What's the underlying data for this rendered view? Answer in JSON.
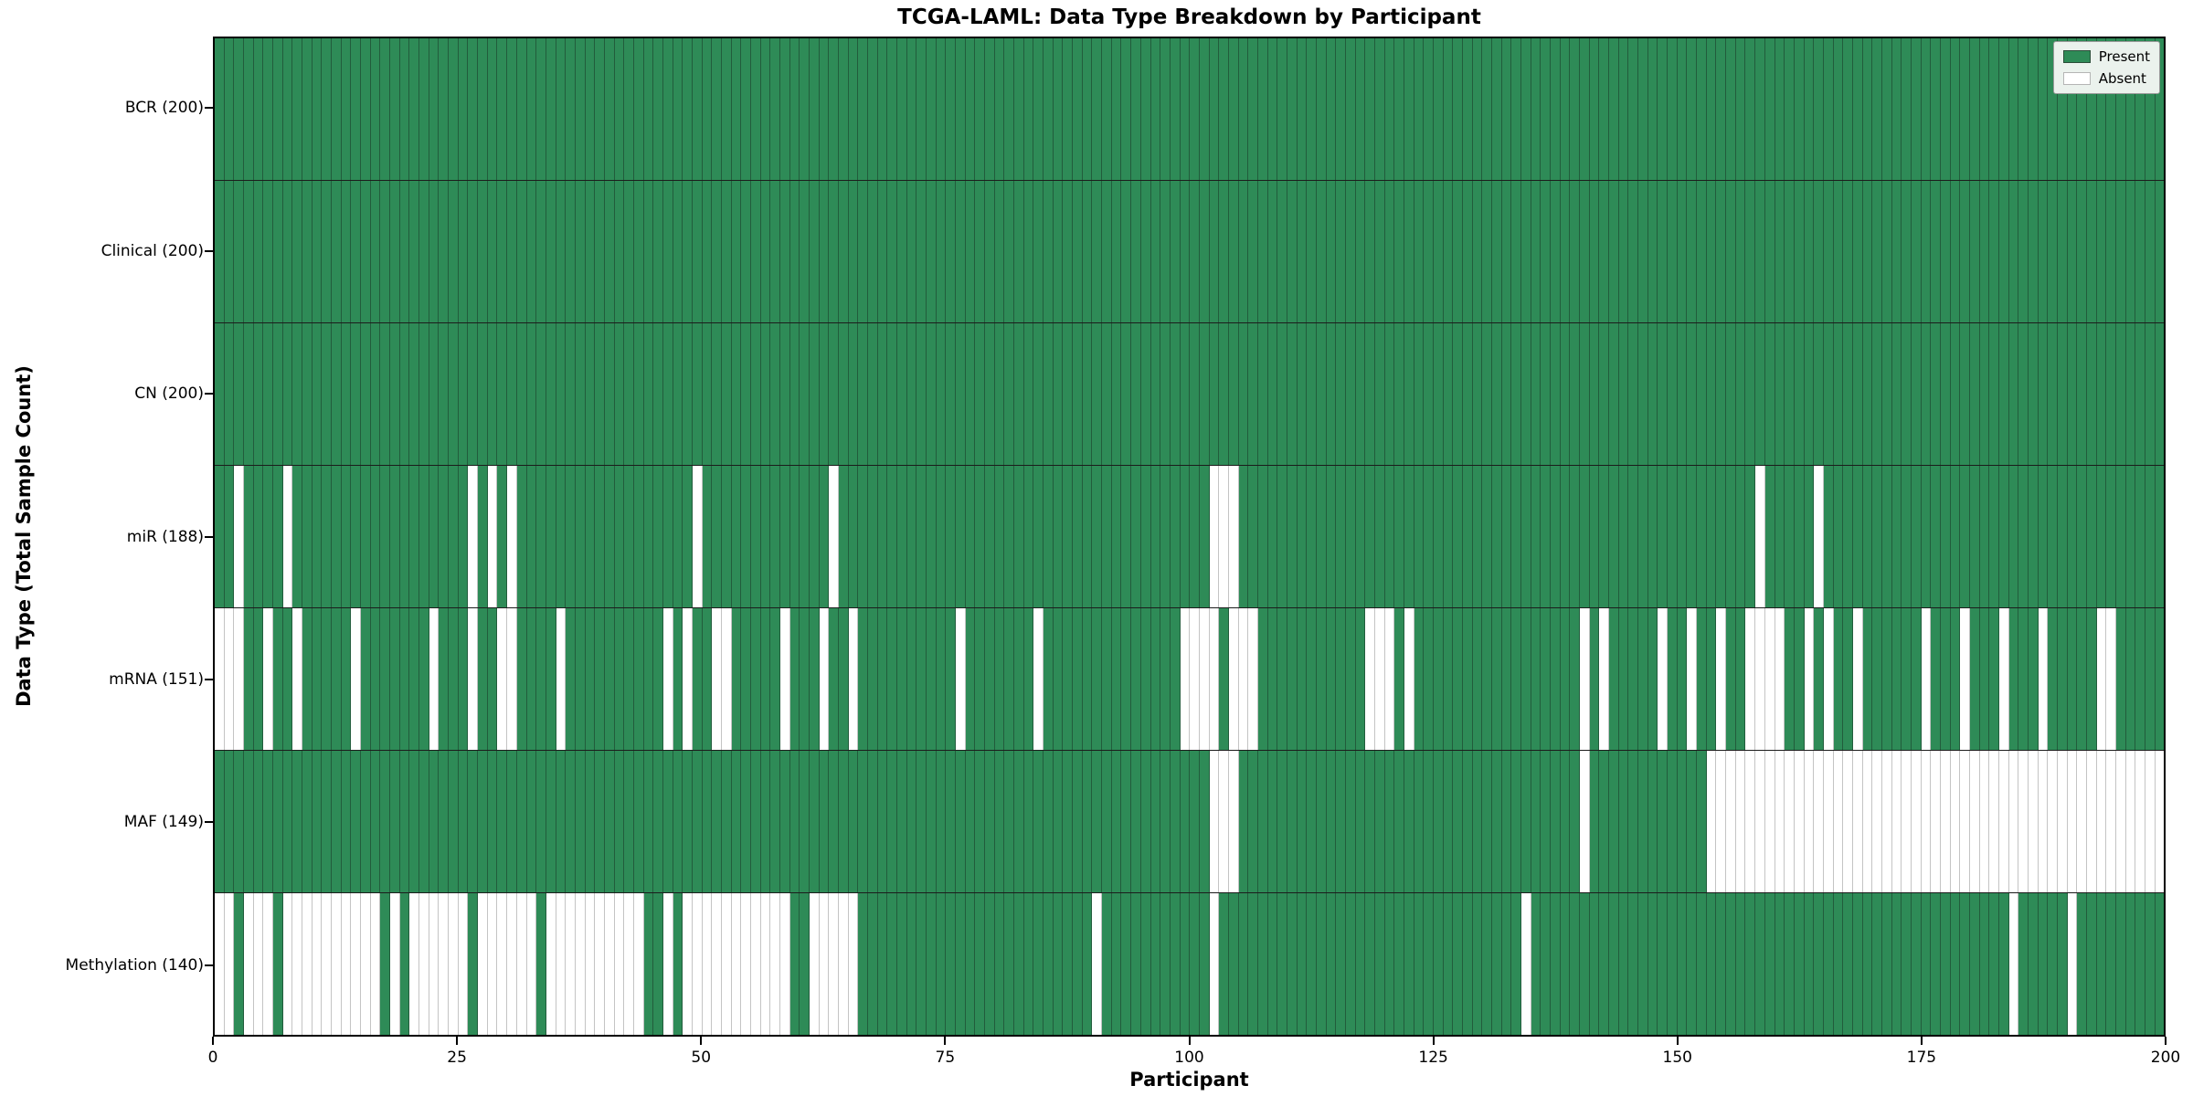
{
  "title": "TCGA-LAML: Data Type Breakdown by Participant",
  "xlabel": "Participant",
  "ylabel": "Data Type (Total Sample Count)",
  "legend": {
    "present_label": "Present",
    "absent_label": "Absent"
  },
  "colors": {
    "present": "#2e8b57",
    "absent": "#ffffff",
    "present_edge": "#225c3c",
    "absent_edge": "#c4c4c4",
    "frame": "#000000",
    "legend_bg": "#ebf2ed"
  },
  "x_ticks": [
    0,
    25,
    50,
    75,
    100,
    125,
    150,
    175,
    200
  ],
  "n_participants": 200,
  "chart_data": {
    "type": "heatmap",
    "x_axis": {
      "label": "Participant",
      "range": [
        0,
        200
      ],
      "ticks": [
        0,
        25,
        50,
        75,
        100,
        125,
        150,
        175,
        200
      ]
    },
    "legend_entries": [
      "Present",
      "Absent"
    ],
    "rows": [
      {
        "label": "BCR (200)",
        "name": "BCR",
        "total_present": 200,
        "absent_columns": []
      },
      {
        "label": "Clinical (200)",
        "name": "Clinical",
        "total_present": 200,
        "absent_columns": []
      },
      {
        "label": "CN (200)",
        "name": "CN",
        "total_present": 200,
        "absent_columns": []
      },
      {
        "label": "miR (188)",
        "name": "miR",
        "total_present": 188,
        "absent_columns": [
          2,
          7,
          26,
          28,
          30,
          49,
          63,
          102,
          103,
          104,
          158,
          164
        ]
      },
      {
        "label": "mRNA (151)",
        "name": "mRNA",
        "total_present": 151,
        "absent_columns": [
          0,
          1,
          2,
          5,
          8,
          14,
          22,
          26,
          29,
          30,
          35,
          46,
          48,
          51,
          52,
          58,
          62,
          65,
          76,
          84,
          99,
          100,
          101,
          102,
          104,
          105,
          106,
          118,
          119,
          120,
          122,
          140,
          142,
          148,
          151,
          154,
          157,
          158,
          159,
          160,
          163,
          165,
          168,
          175,
          179,
          183,
          187,
          193,
          194
        ]
      },
      {
        "label": "MAF (149)",
        "name": "MAF",
        "total_present": 149,
        "absent_columns": [
          102,
          103,
          104,
          140,
          153,
          154,
          155,
          156,
          157,
          158,
          159,
          160,
          161,
          162,
          163,
          164,
          165,
          166,
          167,
          168,
          169,
          170,
          171,
          172,
          173,
          174,
          175,
          176,
          177,
          178,
          179,
          180,
          181,
          182,
          183,
          184,
          185,
          186,
          187,
          188,
          189,
          190,
          191,
          192,
          193,
          194,
          195,
          196,
          197,
          198,
          199
        ]
      },
      {
        "label": "Methylation (140)",
        "name": "Methylation",
        "total_present": 140,
        "absent_columns": [
          0,
          1,
          3,
          4,
          5,
          7,
          8,
          9,
          10,
          11,
          12,
          13,
          14,
          15,
          16,
          18,
          20,
          21,
          22,
          23,
          24,
          25,
          27,
          28,
          29,
          30,
          31,
          32,
          34,
          35,
          36,
          37,
          38,
          39,
          40,
          41,
          42,
          43,
          46,
          48,
          49,
          50,
          51,
          52,
          53,
          54,
          55,
          56,
          57,
          58,
          61,
          62,
          63,
          64,
          65,
          90,
          102,
          134,
          184,
          190
        ]
      }
    ]
  }
}
